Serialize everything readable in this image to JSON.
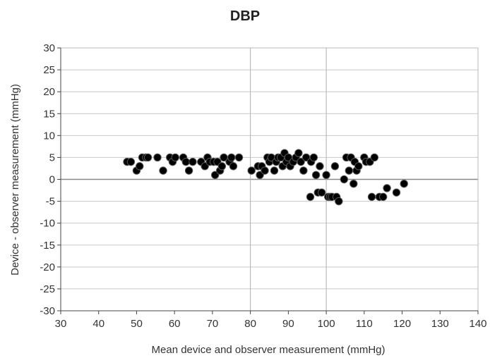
{
  "chart_data": {
    "type": "scatter",
    "title": "DBP",
    "xlabel": "Mean device and observer measurement (mmHg)",
    "ylabel": "Device - observer measurement (mmHg)",
    "xlim": [
      30,
      140
    ],
    "ylim": [
      -30,
      30
    ],
    "x_ticks": [
      "30",
      "40",
      "50",
      "60",
      "70",
      "80",
      "90",
      "100",
      "110",
      "120",
      "130",
      "140"
    ],
    "y_ticks": [
      "30",
      "25",
      "20",
      "15",
      "10",
      "5",
      "0",
      "-5",
      "-10",
      "-15",
      "-20",
      "-25",
      "-30"
    ],
    "grid": "vertical lines at x=80 and x=100; horizontal gridlines every 5",
    "marker_color": "#000000",
    "points": [
      {
        "x": 47.5,
        "y": 4
      },
      {
        "x": 48.5,
        "y": 4
      },
      {
        "x": 50,
        "y": 2
      },
      {
        "x": 50.8,
        "y": 3
      },
      {
        "x": 51.5,
        "y": 5
      },
      {
        "x": 52.5,
        "y": 5
      },
      {
        "x": 53,
        "y": 5
      },
      {
        "x": 55.5,
        "y": 5
      },
      {
        "x": 57,
        "y": 2
      },
      {
        "x": 58.8,
        "y": 5
      },
      {
        "x": 59.5,
        "y": 4
      },
      {
        "x": 60.2,
        "y": 5
      },
      {
        "x": 62.3,
        "y": 5
      },
      {
        "x": 63,
        "y": 4
      },
      {
        "x": 63.8,
        "y": 2
      },
      {
        "x": 64.8,
        "y": 4
      },
      {
        "x": 67,
        "y": 4
      },
      {
        "x": 68,
        "y": 3
      },
      {
        "x": 68.7,
        "y": 5
      },
      {
        "x": 69.3,
        "y": 4
      },
      {
        "x": 70.3,
        "y": 4
      },
      {
        "x": 70.7,
        "y": 1
      },
      {
        "x": 71.3,
        "y": 4
      },
      {
        "x": 72,
        "y": 2
      },
      {
        "x": 72.5,
        "y": 3
      },
      {
        "x": 73,
        "y": 5
      },
      {
        "x": 74.5,
        "y": 4
      },
      {
        "x": 75,
        "y": 5
      },
      {
        "x": 75.5,
        "y": 3
      },
      {
        "x": 77,
        "y": 5
      },
      {
        "x": 80.3,
        "y": 2
      },
      {
        "x": 82,
        "y": 3
      },
      {
        "x": 82.5,
        "y": 1
      },
      {
        "x": 83,
        "y": 3
      },
      {
        "x": 83.8,
        "y": 2
      },
      {
        "x": 84.5,
        "y": 5
      },
      {
        "x": 85,
        "y": 4
      },
      {
        "x": 85.5,
        "y": 5
      },
      {
        "x": 86.3,
        "y": 2
      },
      {
        "x": 86.8,
        "y": 4
      },
      {
        "x": 87.3,
        "y": 5
      },
      {
        "x": 88,
        "y": 5
      },
      {
        "x": 88.5,
        "y": 3
      },
      {
        "x": 89,
        "y": 6
      },
      {
        "x": 89.5,
        "y": 4
      },
      {
        "x": 90,
        "y": 5
      },
      {
        "x": 90.5,
        "y": 3
      },
      {
        "x": 91.3,
        "y": 4
      },
      {
        "x": 92,
        "y": 5
      },
      {
        "x": 92.7,
        "y": 6
      },
      {
        "x": 93.3,
        "y": 4
      },
      {
        "x": 94,
        "y": 2
      },
      {
        "x": 94.7,
        "y": 5
      },
      {
        "x": 96,
        "y": 4
      },
      {
        "x": 96.7,
        "y": 5
      },
      {
        "x": 95.8,
        "y": -4
      },
      {
        "x": 97.3,
        "y": 1
      },
      {
        "x": 97.8,
        "y": -3
      },
      {
        "x": 98.3,
        "y": 3
      },
      {
        "x": 98.8,
        "y": -3
      },
      {
        "x": 100,
        "y": 1
      },
      {
        "x": 100.5,
        "y": -4
      },
      {
        "x": 101,
        "y": -4
      },
      {
        "x": 101.5,
        "y": -4
      },
      {
        "x": 102.3,
        "y": 3
      },
      {
        "x": 102.7,
        "y": -4
      },
      {
        "x": 103.3,
        "y": -5
      },
      {
        "x": 104.7,
        "y": 0
      },
      {
        "x": 105.3,
        "y": 5
      },
      {
        "x": 106,
        "y": 2
      },
      {
        "x": 106.5,
        "y": 5
      },
      {
        "x": 107.2,
        "y": -1
      },
      {
        "x": 107.5,
        "y": 4
      },
      {
        "x": 108,
        "y": 2
      },
      {
        "x": 108.5,
        "y": 3
      },
      {
        "x": 110,
        "y": 5
      },
      {
        "x": 110.5,
        "y": 4
      },
      {
        "x": 111.5,
        "y": 4
      },
      {
        "x": 112,
        "y": -4
      },
      {
        "x": 112.7,
        "y": 5
      },
      {
        "x": 114,
        "y": -4
      },
      {
        "x": 115,
        "y": -4
      },
      {
        "x": 116,
        "y": -2
      },
      {
        "x": 118.5,
        "y": -3
      },
      {
        "x": 120.5,
        "y": -1
      }
    ]
  }
}
